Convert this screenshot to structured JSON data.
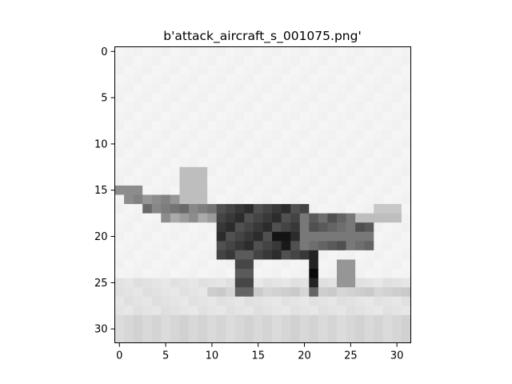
{
  "figure": {
    "title": "b'attack_aircraft_s_001075.png'"
  },
  "image": {
    "rows": 32,
    "cols": 32,
    "colormap": "gray",
    "description_hint": "grayscale 32x32 photo of an aircraft"
  },
  "axes": {
    "x_ticks": [
      0,
      5,
      10,
      15,
      20,
      25,
      30
    ],
    "y_ticks": [
      0,
      5,
      10,
      15,
      20,
      25,
      30
    ],
    "x_tick_labels": [
      "0",
      "5",
      "10",
      "15",
      "20",
      "25",
      "30"
    ],
    "y_tick_labels": [
      "0",
      "5",
      "10",
      "15",
      "20",
      "25",
      "30"
    ]
  }
}
